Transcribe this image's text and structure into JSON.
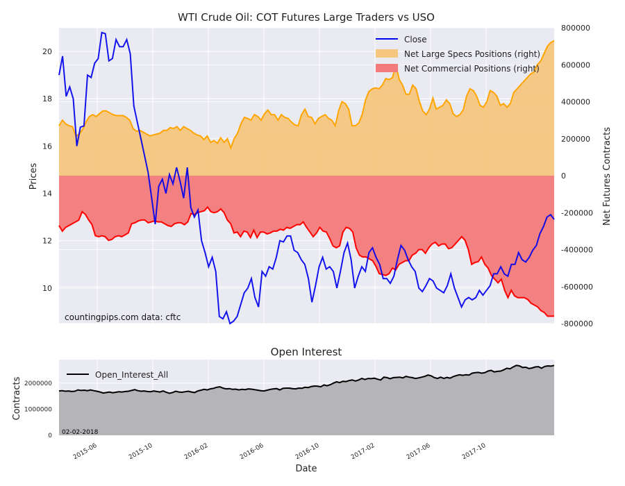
{
  "colors": {
    "background": "#ffffff",
    "panel": "#eaeaf2",
    "grid": "#ffffff",
    "close": "#0000ee",
    "specs_line": "#ffa500",
    "specs_fill": "#f5c77e",
    "comm_line": "#ff0000",
    "comm_fill": "#f47b7b",
    "oi_line": "#000000",
    "oi_fill": "#b5b5b9"
  },
  "chart_data": [
    {
      "type": "line",
      "title": "WTI Crude Oil: COT Futures Large Traders vs USO",
      "ylabel": "Prices",
      "ylabel_right": "Net Futures Contracts",
      "ylim": [
        8.5,
        21.0
      ],
      "ylim_right": [
        -800000,
        800000
      ],
      "yticks_left": [
        "10",
        "12",
        "14",
        "16",
        "18",
        "20"
      ],
      "yticks_right": [
        "-800000",
        "-600000",
        "-400000",
        "-200000",
        "0",
        "200000",
        "400000",
        "600000",
        "800000"
      ],
      "legend_position": "top-right",
      "annotation": "countingpips.com   data: cftc",
      "series": [
        {
          "name": "Close",
          "axis": "left",
          "values": [
            19.0,
            19.8,
            18.1,
            18.5,
            18.0,
            16.0,
            16.8,
            16.85,
            19.0,
            18.9,
            19.5,
            19.7,
            20.8,
            20.75,
            19.6,
            19.7,
            20.5,
            20.2,
            20.2,
            20.5,
            19.9,
            17.7,
            17.0,
            16.3,
            15.6,
            14.9,
            13.8,
            12.7,
            14.3,
            14.6,
            14.0,
            14.8,
            14.4,
            15.1,
            14.5,
            13.8,
            15.1,
            13.4,
            13.0,
            13.3,
            12.0,
            11.5,
            10.9,
            11.3,
            10.7,
            8.8,
            8.7,
            9.0,
            8.5,
            8.6,
            8.8,
            9.3,
            9.8,
            10.0,
            10.4,
            9.6,
            9.2,
            10.7,
            10.5,
            10.9,
            10.8,
            11.3,
            12.0,
            11.95,
            12.2,
            12.2,
            11.6,
            11.5,
            11.2,
            11.0,
            10.4,
            9.4,
            10.1,
            10.9,
            11.3,
            10.8,
            10.9,
            10.7,
            10.0,
            10.7,
            11.5,
            11.9,
            11.2,
            10.0,
            10.5,
            10.9,
            10.7,
            11.5,
            11.7,
            11.3,
            11.0,
            10.4,
            10.4,
            10.2,
            10.5,
            11.2,
            11.8,
            11.6,
            11.2,
            10.9,
            10.7,
            10.0,
            9.85,
            10.1,
            10.4,
            10.3,
            10.0,
            9.9,
            9.8,
            10.1,
            10.6,
            10.0,
            9.6,
            9.2,
            9.5,
            9.6,
            9.5,
            9.6,
            9.9,
            9.7,
            9.9,
            10.1,
            10.6,
            10.6,
            10.9,
            10.6,
            10.5,
            11.0,
            11.0,
            11.5,
            11.2,
            11.1,
            11.3,
            11.6,
            11.8,
            12.3,
            12.6,
            13.0,
            13.1,
            12.9
          ]
        },
        {
          "name": "Net Large Specs Positions (right)",
          "axis": "right",
          "values": [
            270000,
            300000,
            280000,
            270000,
            265000,
            215000,
            225000,
            250000,
            290000,
            320000,
            330000,
            320000,
            335000,
            350000,
            350000,
            340000,
            330000,
            325000,
            325000,
            325000,
            315000,
            300000,
            255000,
            240000,
            245000,
            235000,
            225000,
            215000,
            220000,
            225000,
            230000,
            245000,
            245000,
            260000,
            255000,
            265000,
            245000,
            265000,
            255000,
            245000,
            230000,
            220000,
            215000,
            195000,
            215000,
            180000,
            190000,
            175000,
            205000,
            180000,
            200000,
            150000,
            200000,
            230000,
            280000,
            315000,
            310000,
            300000,
            330000,
            320000,
            300000,
            335000,
            355000,
            330000,
            330000,
            300000,
            330000,
            315000,
            310000,
            290000,
            275000,
            270000,
            330000,
            360000,
            320000,
            315000,
            280000,
            310000,
            320000,
            330000,
            310000,
            300000,
            270000,
            350000,
            400000,
            390000,
            360000,
            270000,
            270000,
            285000,
            330000,
            410000,
            455000,
            470000,
            475000,
            470000,
            490000,
            525000,
            520000,
            530000,
            600000,
            520000,
            490000,
            440000,
            440000,
            490000,
            470000,
            400000,
            350000,
            330000,
            360000,
            420000,
            360000,
            370000,
            380000,
            410000,
            390000,
            335000,
            320000,
            330000,
            355000,
            430000,
            470000,
            460000,
            430000,
            380000,
            370000,
            400000,
            460000,
            450000,
            430000,
            380000,
            390000,
            370000,
            390000,
            450000,
            470000,
            490000,
            510000,
            530000,
            550000,
            560000,
            600000,
            620000,
            660000,
            700000,
            720000,
            730000
          ]
        },
        {
          "name": "Net Commercial Positions (right)",
          "axis": "right",
          "values": [
            -270000,
            -300000,
            -280000,
            -270000,
            -260000,
            -250000,
            -240000,
            -195000,
            -210000,
            -240000,
            -265000,
            -325000,
            -330000,
            -325000,
            -330000,
            -350000,
            -345000,
            -330000,
            -325000,
            -330000,
            -320000,
            -310000,
            -260000,
            -255000,
            -245000,
            -240000,
            -240000,
            -255000,
            -250000,
            -245000,
            -250000,
            -250000,
            -260000,
            -270000,
            -275000,
            -260000,
            -255000,
            -255000,
            -265000,
            -250000,
            -205000,
            -210000,
            -200000,
            -195000,
            -190000,
            -170000,
            -195000,
            -200000,
            -195000,
            -180000,
            -200000,
            -240000,
            -260000,
            -310000,
            -305000,
            -330000,
            -300000,
            -305000,
            -335000,
            -295000,
            -335000,
            -305000,
            -305000,
            -315000,
            -310000,
            -300000,
            -300000,
            -290000,
            -295000,
            -280000,
            -285000,
            -275000,
            -265000,
            -265000,
            -250000,
            -280000,
            -305000,
            -330000,
            -310000,
            -280000,
            -300000,
            -305000,
            -340000,
            -380000,
            -390000,
            -380000,
            -305000,
            -280000,
            -285000,
            -305000,
            -390000,
            -430000,
            -440000,
            -440000,
            -450000,
            -460000,
            -490000,
            -530000,
            -535000,
            -540000,
            -530000,
            -500000,
            -510000,
            -480000,
            -470000,
            -460000,
            -460000,
            -430000,
            -420000,
            -400000,
            -400000,
            -420000,
            -390000,
            -370000,
            -360000,
            -380000,
            -370000,
            -370000,
            -395000,
            -390000,
            -370000,
            -350000,
            -330000,
            -350000,
            -400000,
            -480000,
            -470000,
            -465000,
            -440000,
            -480000,
            -500000,
            -540000,
            -560000,
            -580000,
            -560000,
            -620000,
            -660000,
            -620000,
            -650000,
            -660000,
            -660000,
            -660000,
            -670000,
            -690000,
            -700000,
            -710000,
            -730000,
            -740000,
            -760000,
            -760000,
            -760000
          ]
        }
      ]
    },
    {
      "type": "area",
      "title": "Open Interest",
      "xlabel": "Date",
      "ylabel": "Contracts",
      "ylim": [
        0,
        2900000
      ],
      "yticks": [
        "0",
        "1000000",
        "2000000"
      ],
      "x_tick_labels": [
        "2015-06",
        "2015-10",
        "2016-02",
        "2016-06",
        "2016-10",
        "2017-02",
        "2017-06",
        "2017-10"
      ],
      "legend_position": "top-left",
      "annotation": "02-02-2018",
      "series": [
        {
          "name": "Open_Interest_All",
          "values": [
            1700000,
            1710000,
            1690000,
            1700000,
            1680000,
            1690000,
            1740000,
            1720000,
            1730000,
            1710000,
            1740000,
            1710000,
            1690000,
            1660000,
            1620000,
            1640000,
            1660000,
            1630000,
            1650000,
            1670000,
            1660000,
            1680000,
            1690000,
            1720000,
            1750000,
            1710000,
            1690000,
            1700000,
            1680000,
            1670000,
            1700000,
            1680000,
            1660000,
            1700000,
            1650000,
            1610000,
            1640000,
            1690000,
            1660000,
            1650000,
            1670000,
            1690000,
            1660000,
            1640000,
            1700000,
            1730000,
            1760000,
            1740000,
            1780000,
            1800000,
            1840000,
            1860000,
            1810000,
            1780000,
            1790000,
            1760000,
            1770000,
            1740000,
            1760000,
            1750000,
            1780000,
            1770000,
            1750000,
            1730000,
            1710000,
            1700000,
            1730000,
            1760000,
            1780000,
            1790000,
            1740000,
            1800000,
            1810000,
            1810000,
            1790000,
            1780000,
            1810000,
            1800000,
            1840000,
            1830000,
            1870000,
            1890000,
            1880000,
            1860000,
            1930000,
            1900000,
            1940000,
            2000000,
            2050000,
            2020000,
            2070000,
            2060000,
            2100000,
            2120000,
            2080000,
            2120000,
            2180000,
            2140000,
            2180000,
            2170000,
            2190000,
            2150000,
            2120000,
            2230000,
            2210000,
            2170000,
            2210000,
            2220000,
            2230000,
            2200000,
            2260000,
            2230000,
            2210000,
            2180000,
            2200000,
            2230000,
            2260000,
            2310000,
            2280000,
            2210000,
            2180000,
            2230000,
            2180000,
            2220000,
            2190000,
            2250000,
            2290000,
            2320000,
            2300000,
            2320000,
            2310000,
            2380000,
            2400000,
            2410000,
            2380000,
            2400000,
            2460000,
            2490000,
            2430000,
            2450000,
            2460000,
            2510000,
            2570000,
            2550000,
            2620000,
            2680000,
            2660000,
            2600000,
            2610000,
            2560000,
            2580000,
            2620000,
            2630000,
            2570000,
            2640000,
            2660000,
            2650000,
            2680000
          ]
        }
      ]
    }
  ]
}
